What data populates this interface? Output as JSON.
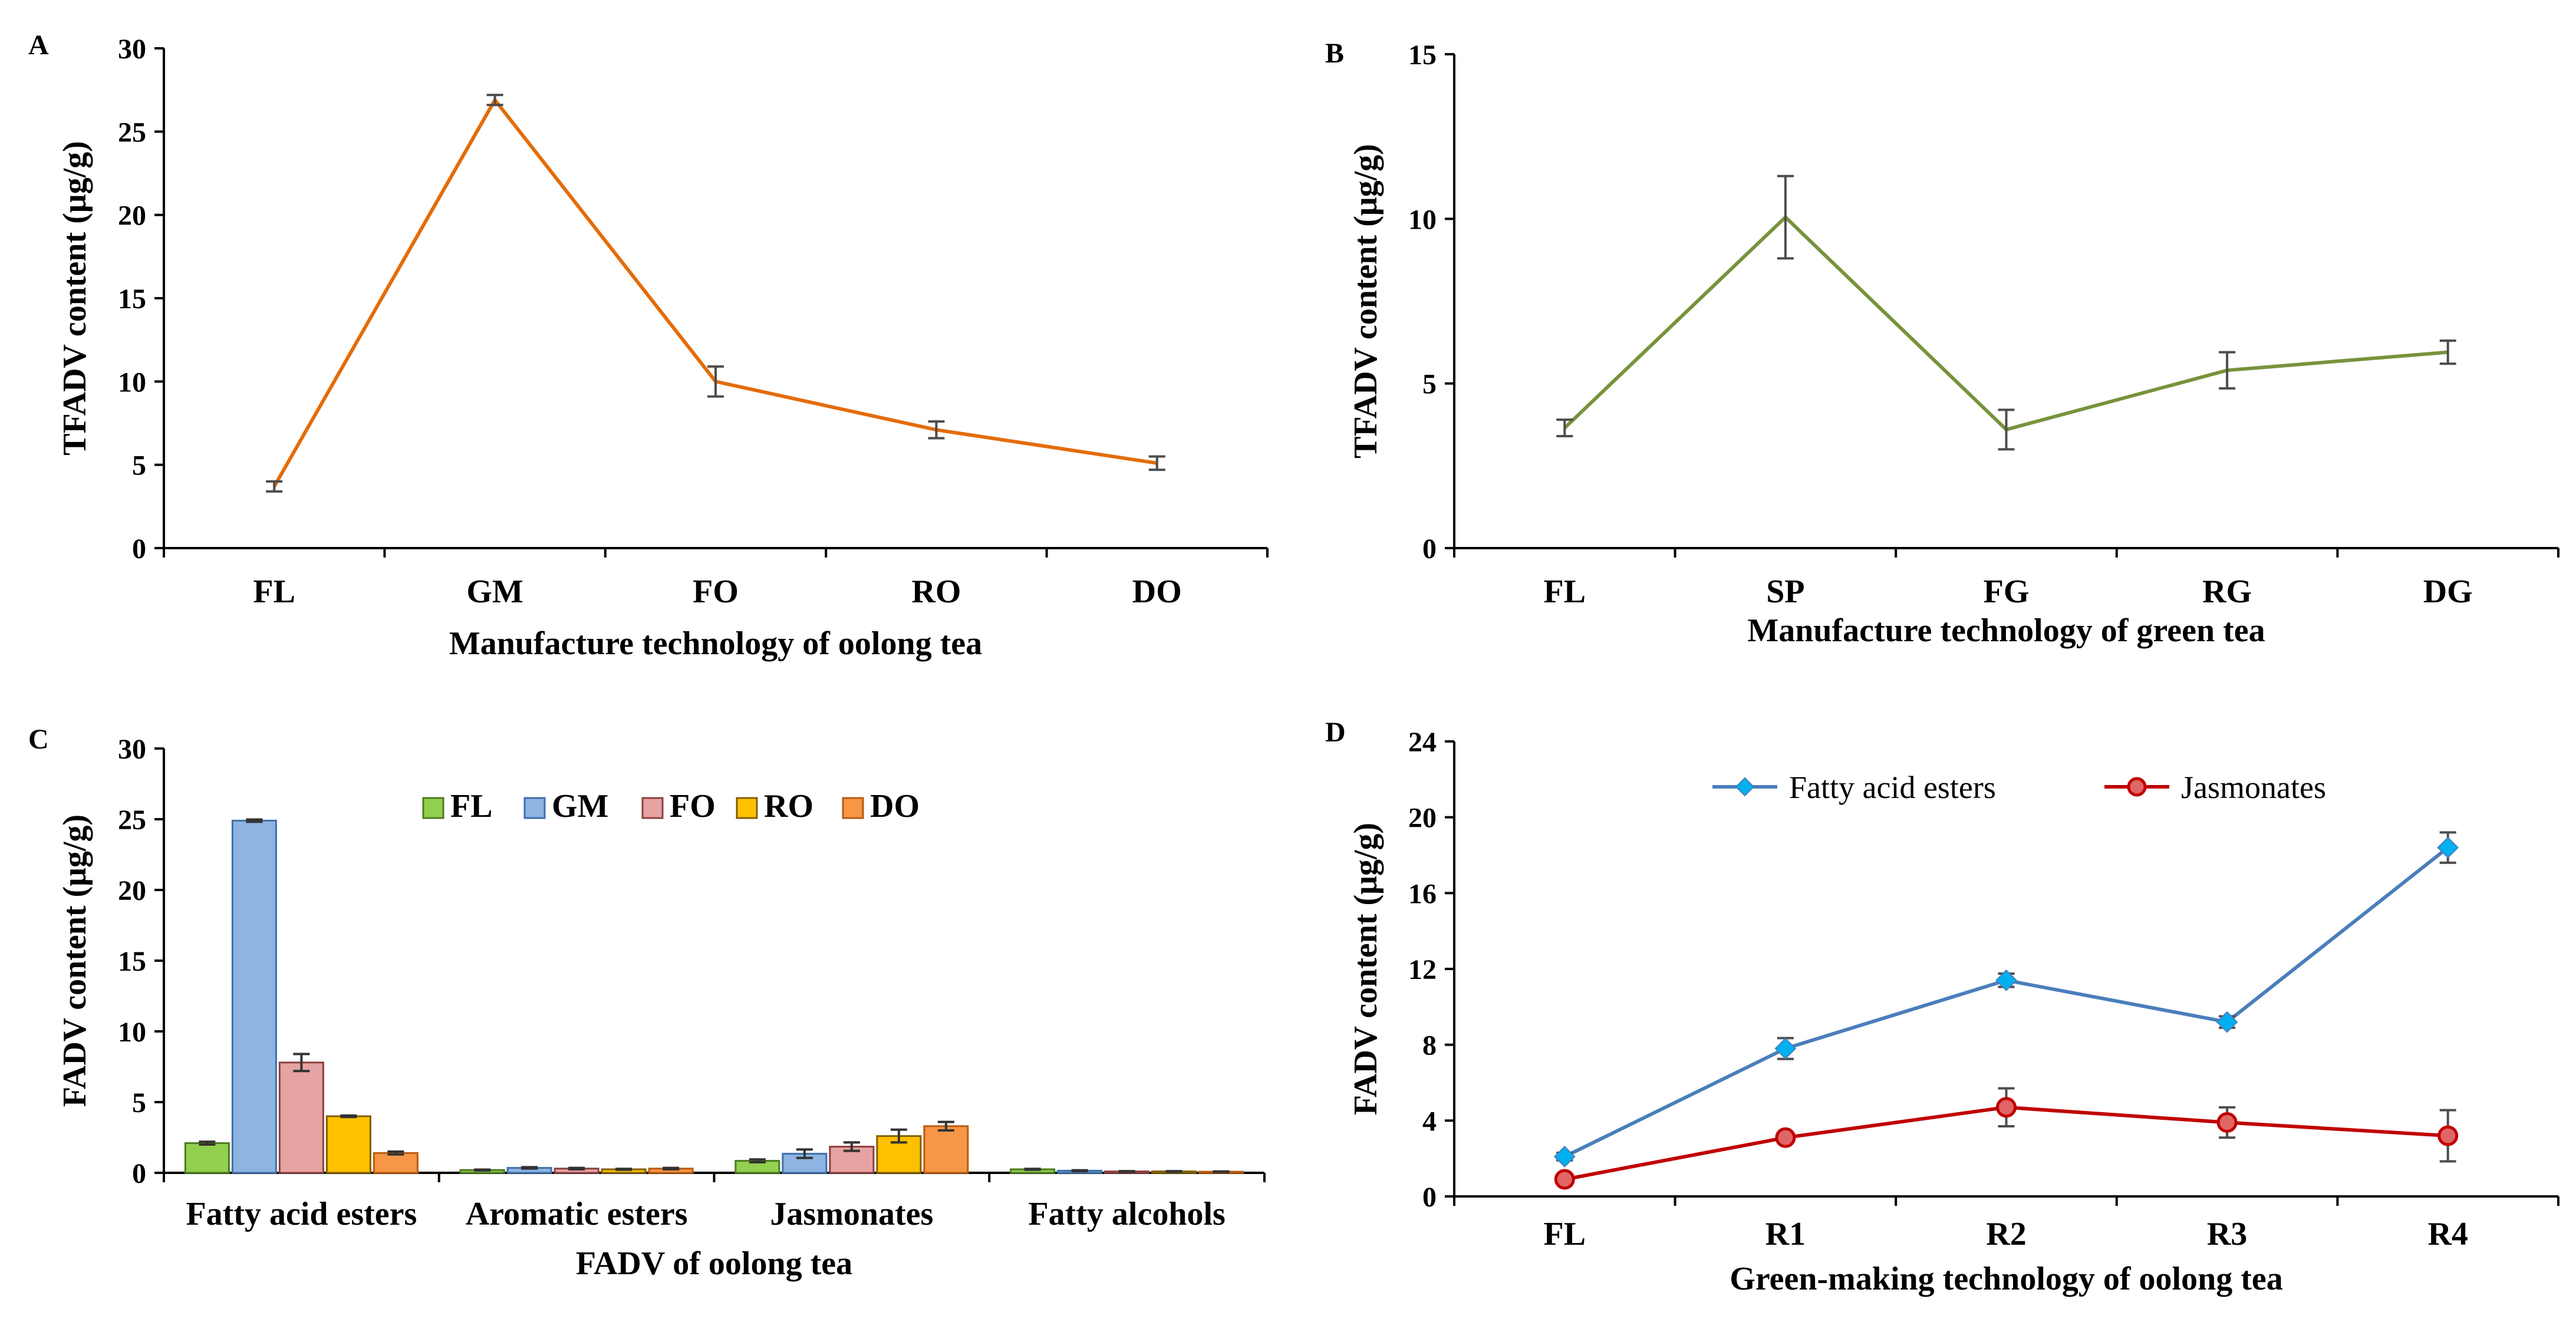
{
  "chart_data": [
    {
      "panel": "A",
      "type": "line",
      "categories": [
        "FL",
        "GM",
        "FO",
        "RO",
        "DO"
      ],
      "series": [
        {
          "name": "TFADV",
          "color": "#E36C09",
          "values": [
            3.7,
            26.9,
            10.0,
            7.1,
            5.1
          ],
          "errors": [
            0.3,
            0.3,
            0.9,
            0.5,
            0.4
          ]
        }
      ],
      "xlabel": "Manufacture technology of oolong tea",
      "ylabel": "TFADV content (μg/g)",
      "ylim": [
        0,
        30
      ],
      "yticks": [
        0,
        5,
        10,
        15,
        20,
        25,
        30
      ]
    },
    {
      "panel": "B",
      "type": "line",
      "categories": [
        "FL",
        "SP",
        "FG",
        "RG",
        "DG"
      ],
      "series": [
        {
          "name": "TFADV",
          "color": "#77933C",
          "values": [
            3.65,
            10.05,
            3.6,
            5.4,
            5.95
          ],
          "errors": [
            0.25,
            1.25,
            0.6,
            0.55,
            0.35
          ]
        }
      ],
      "xlabel": "Manufacture technology of green tea",
      "ylabel": "TFADV content (μg/g)",
      "ylim": [
        0,
        15
      ],
      "yticks": [
        0,
        5,
        10,
        15
      ]
    },
    {
      "panel": "C",
      "type": "bar",
      "categories": [
        "Fatty acid esters",
        "Aromatic esters",
        "Jasmonates",
        "Fatty alcohols"
      ],
      "series": [
        {
          "name": "FL",
          "color": "#92D050",
          "edge": "#4E7A1F",
          "values": [
            2.1,
            0.2,
            0.85,
            0.25
          ],
          "errors": [
            0.1,
            0.03,
            0.1,
            0.03
          ]
        },
        {
          "name": "GM",
          "color": "#8DB4E2",
          "edge": "#3F6FA8",
          "values": [
            24.9,
            0.35,
            1.35,
            0.15
          ],
          "errors": [
            0.08,
            0.05,
            0.3,
            0.03
          ]
        },
        {
          "name": "FO",
          "color": "#E6A3A3",
          "edge": "#8C3F3F",
          "values": [
            7.8,
            0.3,
            1.85,
            0.1
          ],
          "errors": [
            0.6,
            0.05,
            0.3,
            0.02
          ]
        },
        {
          "name": "RO",
          "color": "#FFC000",
          "edge": "#7F6000",
          "values": [
            4.0,
            0.25,
            2.6,
            0.1
          ],
          "errors": [
            0.05,
            0.03,
            0.45,
            0.02
          ]
        },
        {
          "name": "DO",
          "color": "#F79646",
          "edge": "#B85A0F",
          "values": [
            1.4,
            0.3,
            3.3,
            0.08
          ],
          "errors": [
            0.1,
            0.05,
            0.3,
            0.02
          ]
        }
      ],
      "xlabel": "FADV of oolong tea",
      "ylabel": "FADV content (μg/g)",
      "ylim": [
        0,
        30
      ],
      "yticks": [
        0,
        5,
        10,
        15,
        20,
        25,
        30
      ],
      "legend_position": "top-center"
    },
    {
      "panel": "D",
      "type": "line",
      "categories": [
        "FL",
        "R1",
        "R2",
        "R3",
        "R4"
      ],
      "series": [
        {
          "name": "Fatty acid esters",
          "color": "#4A7EBB",
          "marker_color": "#00B0F0",
          "marker": "diamond",
          "values": [
            2.1,
            7.8,
            11.4,
            9.2,
            18.4
          ],
          "errors": [
            0.2,
            0.55,
            0.35,
            0.3,
            0.8
          ]
        },
        {
          "name": "Jasmonates",
          "color": "#C00000",
          "marker_color": "#E06666",
          "marker": "circle",
          "values": [
            0.9,
            3.1,
            4.7,
            3.9,
            3.2
          ],
          "errors": [
            0.1,
            0.15,
            1.0,
            0.8,
            1.35
          ]
        }
      ],
      "xlabel": "Green-making technology of oolong tea",
      "ylabel": "FADV content (μg/g)",
      "ylim": [
        0,
        24
      ],
      "yticks": [
        0,
        4,
        8,
        12,
        16,
        20,
        24
      ],
      "legend_position": "top"
    }
  ]
}
